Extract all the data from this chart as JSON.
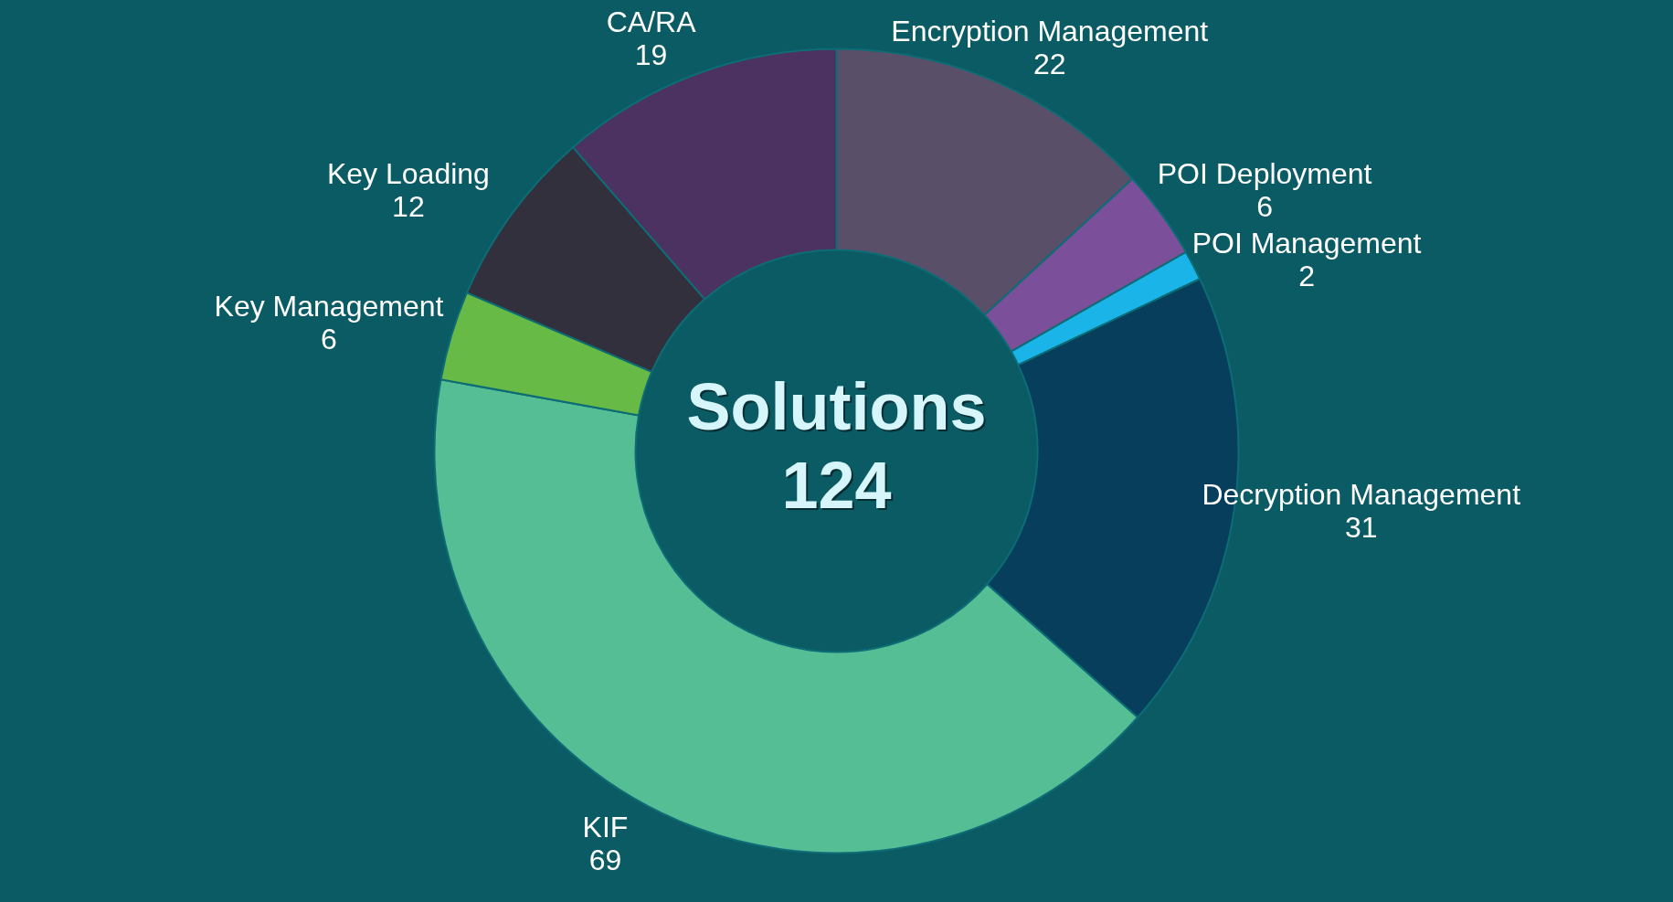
{
  "chart_data": {
    "type": "donut",
    "categories": [
      "Encryption Management",
      "POI Deployment",
      "POI Management",
      "Decryption Management",
      "KIF",
      "Key Management",
      "Key Loading",
      "CA/RA"
    ],
    "values": [
      22,
      6,
      2,
      31,
      69,
      6,
      12,
      19
    ],
    "colors": [
      "#5a4f69",
      "#7b4f99",
      "#1ab4e8",
      "#063e5c",
      "#56be95",
      "#66ba45",
      "#33303d",
      "#4b3260"
    ],
    "annotations": [
      "Solutions",
      "124"
    ],
    "data_labels": true,
    "legend": false
  }
}
